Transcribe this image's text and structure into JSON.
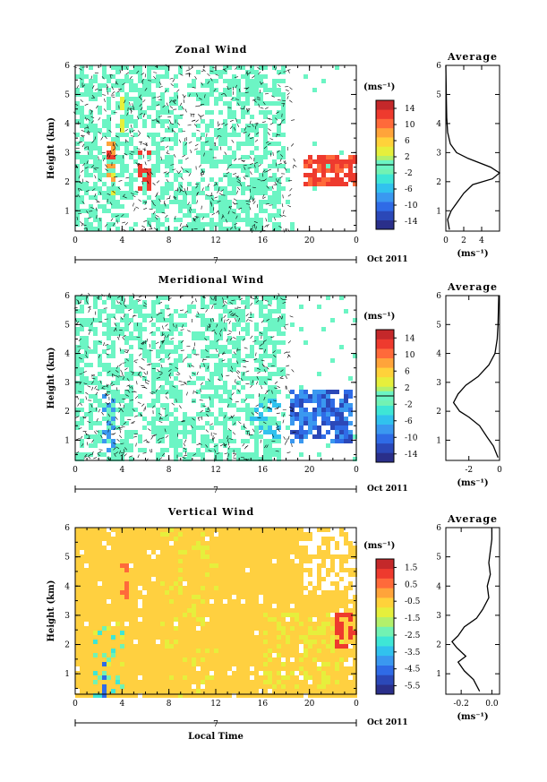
{
  "chart_data": [
    {
      "type": "heatmap",
      "title": "Zonal Wind",
      "ylabel": "Height (km)",
      "xticks": [
        "0",
        "4",
        "8",
        "12",
        "16",
        "20",
        "0"
      ],
      "yticks": [
        "1",
        "2",
        "3",
        "4",
        "5",
        "6"
      ],
      "xlim": [
        0,
        24
      ],
      "ylim": [
        0.3,
        6
      ],
      "date_label": "Oct 2011",
      "date_day": "7",
      "colorbar": {
        "unit": "(ms⁻¹)",
        "range": [
          -16,
          16
        ],
        "ticks": [
          "14",
          "10",
          "6",
          "2",
          "-2",
          "-6",
          "-10",
          "-14"
        ]
      },
      "profile": {
        "title": "Average",
        "xlabel": "(ms⁻¹)",
        "xticks": [
          "0",
          "2",
          "4"
        ],
        "xlim": [
          0,
          6
        ],
        "points": [
          [
            0.4,
            0.35
          ],
          [
            0.2,
            0.7
          ],
          [
            0.6,
            1.0
          ],
          [
            1.3,
            1.3
          ],
          [
            2.0,
            1.6
          ],
          [
            3.0,
            1.9
          ],
          [
            5.2,
            2.1
          ],
          [
            6.0,
            2.3
          ],
          [
            5.0,
            2.5
          ],
          [
            2.5,
            2.8
          ],
          [
            1.2,
            3.0
          ],
          [
            0.5,
            3.3
          ],
          [
            0.2,
            3.7
          ],
          [
            0.1,
            4.2
          ],
          [
            0.05,
            5.0
          ],
          [
            0.0,
            6.0
          ]
        ]
      }
    },
    {
      "type": "heatmap",
      "title": "Meridional Wind",
      "ylabel": "Height (km)",
      "xticks": [
        "0",
        "4",
        "8",
        "12",
        "16",
        "20",
        "0"
      ],
      "yticks": [
        "1",
        "2",
        "3",
        "4",
        "5",
        "6"
      ],
      "xlim": [
        0,
        24
      ],
      "ylim": [
        0.3,
        6
      ],
      "date_label": "Oct 2011",
      "date_day": "7",
      "colorbar": {
        "unit": "(ms⁻¹)",
        "range": [
          -16,
          16
        ],
        "ticks": [
          "14",
          "10",
          "6",
          "2",
          "-2",
          "-6",
          "-10",
          "-14"
        ]
      },
      "profile": {
        "title": "Average",
        "xlabel": "(ms⁻¹)",
        "xticks": [
          "-2",
          "0"
        ],
        "xlim": [
          -3.5,
          0
        ],
        "points": [
          [
            -0.1,
            0.4
          ],
          [
            -0.4,
            0.8
          ],
          [
            -0.8,
            1.1
          ],
          [
            -1.3,
            1.5
          ],
          [
            -2.0,
            1.8
          ],
          [
            -2.6,
            2.0
          ],
          [
            -3.0,
            2.3
          ],
          [
            -2.7,
            2.6
          ],
          [
            -2.2,
            2.9
          ],
          [
            -1.4,
            3.2
          ],
          [
            -0.7,
            3.6
          ],
          [
            -0.3,
            4.0
          ],
          [
            -0.15,
            4.5
          ],
          [
            -0.1,
            5.0
          ],
          [
            -0.05,
            6.0
          ]
        ]
      }
    },
    {
      "type": "heatmap",
      "title": "Vertical Wind",
      "ylabel": "Height (km)",
      "xlabel": "Local Time",
      "xticks": [
        "0",
        "4",
        "8",
        "12",
        "16",
        "20",
        "0"
      ],
      "yticks": [
        "1",
        "2",
        "3",
        "4",
        "5",
        "6"
      ],
      "xlim": [
        0,
        24
      ],
      "ylim": [
        0.3,
        6
      ],
      "date_label": "Oct 2011",
      "date_day": "7",
      "colorbar": {
        "unit": "(ms⁻¹)",
        "range": [
          -6,
          2
        ],
        "ticks": [
          "1.5",
          "0.5",
          "-0.5",
          "-1.5",
          "-2.5",
          "-3.5",
          "-4.5",
          "-5.5"
        ]
      },
      "profile": {
        "title": "Average",
        "xlabel": "(ms⁻¹)",
        "xticks": [
          "-0.2",
          "0.0"
        ],
        "xlim": [
          -0.3,
          0.05
        ],
        "points": [
          [
            -0.08,
            0.4
          ],
          [
            -0.12,
            0.8
          ],
          [
            -0.18,
            1.1
          ],
          [
            -0.22,
            1.4
          ],
          [
            -0.17,
            1.6
          ],
          [
            -0.23,
            1.9
          ],
          [
            -0.26,
            2.1
          ],
          [
            -0.22,
            2.3
          ],
          [
            -0.18,
            2.6
          ],
          [
            -0.1,
            2.9
          ],
          [
            -0.06,
            3.2
          ],
          [
            -0.02,
            3.6
          ],
          [
            -0.03,
            4.0
          ],
          [
            -0.01,
            4.4
          ],
          [
            -0.02,
            4.8
          ],
          [
            -0.01,
            5.2
          ],
          [
            0.0,
            5.6
          ],
          [
            0.0,
            6.0
          ]
        ]
      }
    }
  ]
}
